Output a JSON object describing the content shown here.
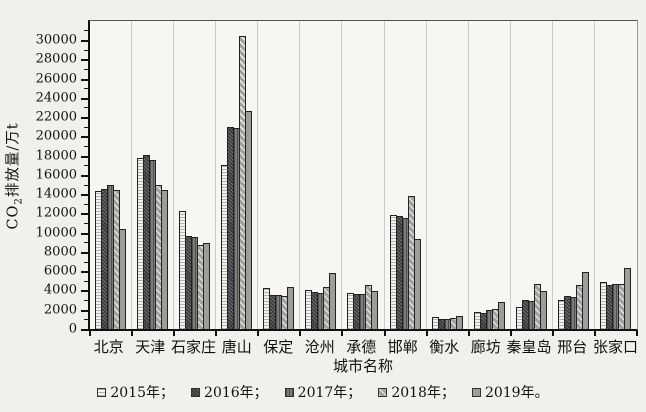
{
  "figure": {
    "y_label_main": "CO",
    "y_label_sub": "2",
    "y_label_rest": "排放量/万t",
    "x_title": "城市名称"
  },
  "chart_data": {
    "type": "bar",
    "title": "",
    "xlabel": "城市名称",
    "ylabel": "CO2排放量/万t",
    "ylim": [
      0,
      32000
    ],
    "ytick_major_step": 2000,
    "ytick_minor_step": 1000,
    "grid": "vertical light gray lines between city groups",
    "legend_position": "bottom",
    "categories": [
      "北京",
      "天津",
      "石家庄",
      "唐山",
      "保定",
      "沧州",
      "承德",
      "邯郸",
      "衡水",
      "廊坊",
      "秦皇岛",
      "邢台",
      "张家口"
    ],
    "series": [
      {
        "name": "2015年",
        "pattern": "light-dotted",
        "color": "#f3f2ee",
        "values": [
          14300,
          17700,
          12200,
          17000,
          4300,
          4100,
          3700,
          11800,
          1200,
          1800,
          2300,
          3000,
          4900
        ]
      },
      {
        "name": "2016年",
        "pattern": "dark-speckle",
        "color": "#353535",
        "values": [
          14500,
          18100,
          9700,
          21000,
          3500,
          3800,
          3600,
          11700,
          1000,
          1700,
          3000,
          3400,
          4600
        ]
      },
      {
        "name": "2017年",
        "pattern": "gray-vertical-lines",
        "color": "#7c7c7a",
        "values": [
          14900,
          17500,
          9600,
          20900,
          3500,
          3700,
          3600,
          11500,
          1000,
          2000,
          2900,
          3300,
          4700
        ]
      },
      {
        "name": "2018年",
        "pattern": "diagonal-hatch",
        "color": "#a2a29e",
        "values": [
          14400,
          14900,
          8700,
          30400,
          3400,
          4400,
          4600,
          13800,
          1100,
          2100,
          4700,
          4600,
          4700
        ]
      },
      {
        "name": "2019年",
        "pattern": "solid-gray",
        "color": "#9d9d99",
        "values": [
          10400,
          14400,
          8900,
          22600,
          4400,
          5800,
          3900,
          9300,
          1400,
          2800,
          3900,
          5900,
          6300
        ]
      }
    ],
    "legend_labels": [
      "2015年；",
      "2016年；",
      "2017年；",
      "2018年；",
      "2019年。"
    ]
  }
}
